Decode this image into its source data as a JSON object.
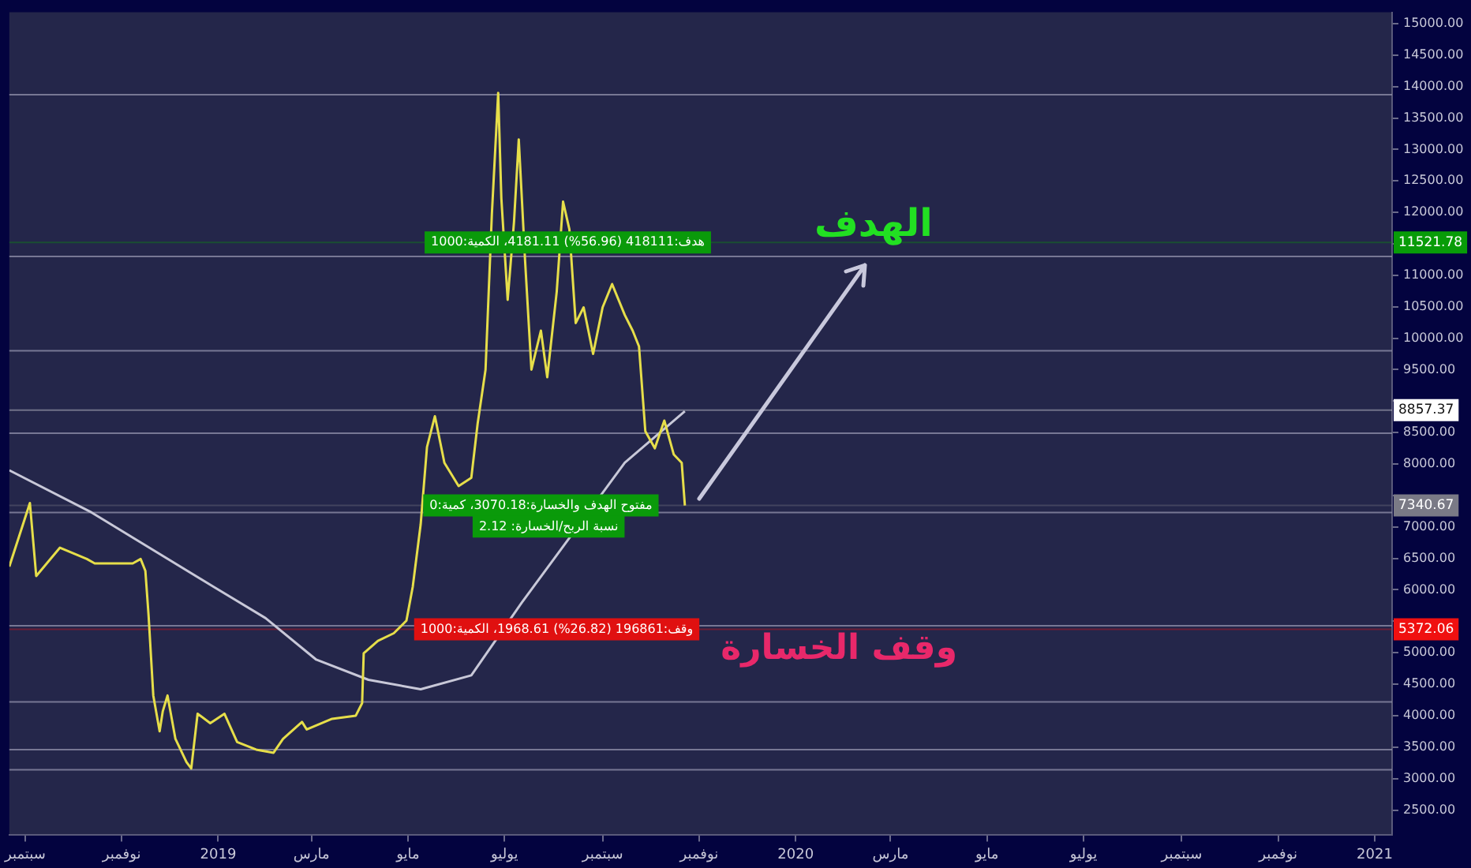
{
  "chart_data": {
    "type": "line",
    "xlim": [
      "2018-08-22",
      "2021-01-12"
    ],
    "ylim": [
      2100,
      15180
    ],
    "xticks": [
      {
        "value": "2018-09-01",
        "label": "سبتمبر"
      },
      {
        "value": "2018-11-01",
        "label": "نوفمبر"
      },
      {
        "value": "2019-01-01",
        "label": "2019"
      },
      {
        "value": "2019-03-01",
        "label": "مارس"
      },
      {
        "value": "2019-05-01",
        "label": "مايو"
      },
      {
        "value": "2019-07-01",
        "label": "يوليو"
      },
      {
        "value": "2019-09-01",
        "label": "سبتمبر"
      },
      {
        "value": "2019-11-01",
        "label": "نوفمبر"
      },
      {
        "value": "2020-01-01",
        "label": "2020"
      },
      {
        "value": "2020-03-01",
        "label": "مارس"
      },
      {
        "value": "2020-05-01",
        "label": "مايو"
      },
      {
        "value": "2020-07-01",
        "label": "يوليو"
      },
      {
        "value": "2020-09-01",
        "label": "سبتمبر"
      },
      {
        "value": "2020-11-01",
        "label": "نوفمبر"
      },
      {
        "value": "2021-01-01",
        "label": "2021"
      }
    ],
    "yticks": [
      {
        "value": 2500,
        "label": "2500.00"
      },
      {
        "value": 3000,
        "label": "3000.00"
      },
      {
        "value": 3500,
        "label": "3500.00"
      },
      {
        "value": 4000,
        "label": "4000.00"
      },
      {
        "value": 4500,
        "label": "4500.00"
      },
      {
        "value": 5000,
        "label": "5000.00"
      },
      {
        "value": 5500,
        "label": null
      },
      {
        "value": 6000,
        "label": "6000.00"
      },
      {
        "value": 6500,
        "label": "6500.00"
      },
      {
        "value": 7000,
        "label": "7000.00"
      },
      {
        "value": 7500,
        "label": null
      },
      {
        "value": 8000,
        "label": "8000.00"
      },
      {
        "value": 8500,
        "label": "8500.00"
      },
      {
        "value": 9000,
        "label": null
      },
      {
        "value": 9500,
        "label": "9500.00"
      },
      {
        "value": 10000,
        "label": "10000.00"
      },
      {
        "value": 10500,
        "label": "10500.00"
      },
      {
        "value": 11000,
        "label": "11000.00"
      },
      {
        "value": 11500,
        "label": null
      },
      {
        "value": 12000,
        "label": "12000.00"
      },
      {
        "value": 12500,
        "label": "12500.00"
      },
      {
        "value": 13000,
        "label": "13000.00"
      },
      {
        "value": 13500,
        "label": "13500.00"
      },
      {
        "value": 14000,
        "label": "14000.00"
      },
      {
        "value": 14500,
        "label": "14500.00"
      },
      {
        "value": 15000,
        "label": "15000.00"
      }
    ],
    "grid": false,
    "legend": false,
    "marker": "none",
    "line_style": "solid",
    "series": [
      {
        "color": "#e6de4a",
        "x": [
          "2018-08-22",
          "2018-09-04",
          "2018-09-08",
          "2018-09-23",
          "2018-10-10",
          "2018-10-15",
          "2018-11-08",
          "2018-11-13",
          "2018-11-16",
          "2018-11-18",
          "2018-11-21",
          "2018-11-25",
          "2018-11-27",
          "2018-11-30",
          "2018-12-05",
          "2018-12-12",
          "2018-12-15",
          "2018-12-19",
          "2018-12-27",
          "2019-01-05",
          "2019-01-13",
          "2019-01-25",
          "2019-02-05",
          "2019-02-11",
          "2019-02-23",
          "2019-02-26",
          "2019-03-14",
          "2019-03-29",
          "2019-04-02",
          "2019-04-03",
          "2019-04-12",
          "2019-04-22",
          "2019-04-30",
          "2019-05-04",
          "2019-05-09",
          "2019-05-13",
          "2019-05-18",
          "2019-05-24",
          "2019-06-02",
          "2019-06-10",
          "2019-06-14",
          "2019-06-19",
          "2019-06-23",
          "2019-06-27",
          "2019-06-29",
          "2019-07-03",
          "2019-07-07",
          "2019-07-10",
          "2019-07-14",
          "2019-07-18",
          "2019-07-24",
          "2019-07-28",
          "2019-08-03",
          "2019-08-07",
          "2019-08-11",
          "2019-08-15",
          "2019-08-20",
          "2019-08-26",
          "2019-09-01",
          "2019-09-07",
          "2019-09-15",
          "2019-09-20",
          "2019-09-24",
          "2019-09-28",
          "2019-10-04",
          "2019-10-10",
          "2019-10-16",
          "2019-10-21",
          "2019-10-23"
        ],
        "values": [
          6370,
          7380,
          6220,
          6670,
          6490,
          6420,
          6420,
          6490,
          6300,
          5600,
          4320,
          3750,
          4070,
          4320,
          3630,
          3260,
          3160,
          4030,
          3880,
          4030,
          3580,
          3460,
          3410,
          3630,
          3900,
          3780,
          3950,
          4000,
          4200,
          4990,
          5190,
          5310,
          5510,
          6050,
          7040,
          8270,
          8760,
          8020,
          7650,
          7780,
          8640,
          9500,
          11970,
          13900,
          12220,
          10610,
          11850,
          13160,
          11230,
          9500,
          10120,
          9380,
          10740,
          12170,
          11730,
          10240,
          10490,
          9750,
          10490,
          10860,
          10370,
          10120,
          9870,
          8520,
          8250,
          8690,
          8150,
          8020,
          7340
        ]
      },
      {
        "color": "#c8c8d8",
        "x": [
          "2018-08-22",
          "2018-10-13",
          "2018-12-29",
          "2019-01-31",
          "2019-03-04",
          "2019-04-06",
          "2019-05-09",
          "2019-06-10",
          "2019-07-12",
          "2019-09-15",
          "2019-10-23"
        ],
        "values": [
          7900,
          7230,
          6050,
          5550,
          4890,
          4570,
          4420,
          4640,
          5800,
          8020,
          8840
        ]
      }
    ],
    "ref_lines": [
      {
        "axis": "y",
        "value": 13870,
        "color": "#8c8ca6"
      },
      {
        "axis": "y",
        "value": 11300,
        "color": "#8c8ca6"
      },
      {
        "axis": "y",
        "value": 9800,
        "color": "#8c8ca6"
      },
      {
        "axis": "y",
        "value": 8490,
        "color": "#8c8ca6"
      },
      {
        "axis": "y",
        "value": 7230,
        "color": "#8c8ca6"
      },
      {
        "axis": "y",
        "value": 5430,
        "color": "#8c8ca6"
      },
      {
        "axis": "y",
        "value": 4220,
        "color": "#8c8ca6"
      },
      {
        "axis": "y",
        "value": 3460,
        "color": "#8c8ca6"
      },
      {
        "axis": "y",
        "value": 3140,
        "color": "#8c8ca6"
      },
      {
        "axis": "y",
        "value": 11521.78,
        "label": "11521.78",
        "color": "#089c08"
      },
      {
        "axis": "y",
        "value": 8857.37,
        "label": "8857.37",
        "color": "#ffffff"
      },
      {
        "axis": "y",
        "value": 7340.67,
        "label": "7340.67",
        "color": "#7a7a86"
      },
      {
        "axis": "y",
        "value": 5372.06,
        "label": "5372.06",
        "color": "#f01010"
      }
    ],
    "annotations": [
      {
        "text": "هدف:418111 (56.96%) 4181.11، الكمية:1000",
        "x": "2019-08-10",
        "y": 11521.78
      },
      {
        "text": "مفتوح الهدف والخسارة:3070.18، كمية:0",
        "x": "2019-07-24",
        "y": 7340.67
      },
      "نسبة الربح/الخسارة: 2.12",
      {
        "text": "وقف:196861 (26.82%) 1968.61، الكمية:1000",
        "x": "2019-08-03",
        "y": 5372.06
      },
      "الهدف",
      "وقف الخسارة"
    ]
  }
}
